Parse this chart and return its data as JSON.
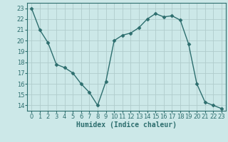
{
  "x": [
    0,
    1,
    2,
    3,
    4,
    5,
    6,
    7,
    8,
    9,
    10,
    11,
    12,
    13,
    14,
    15,
    16,
    17,
    18,
    19,
    20,
    21,
    22,
    23
  ],
  "y": [
    23,
    21,
    19.8,
    17.8,
    17.5,
    17,
    16,
    15.2,
    14,
    16.2,
    20,
    20.5,
    20.7,
    21.2,
    22,
    22.5,
    22.2,
    22.3,
    21.9,
    19.7,
    16,
    14.3,
    14,
    13.7
  ],
  "line_color": "#2d6e6e",
  "marker": "D",
  "marker_size": 2.5,
  "bg_color": "#cce8e8",
  "grid_color": "#b0cccc",
  "xlabel": "Humidex (Indice chaleur)",
  "xlim": [
    -0.5,
    23.5
  ],
  "ylim": [
    13.5,
    23.5
  ],
  "yticks": [
    14,
    15,
    16,
    17,
    18,
    19,
    20,
    21,
    22,
    23
  ],
  "xticks": [
    0,
    1,
    2,
    3,
    4,
    5,
    6,
    7,
    8,
    9,
    10,
    11,
    12,
    13,
    14,
    15,
    16,
    17,
    18,
    19,
    20,
    21,
    22,
    23
  ],
  "axis_color": "#2d6e6e",
  "label_fontsize": 7,
  "tick_fontsize": 6
}
